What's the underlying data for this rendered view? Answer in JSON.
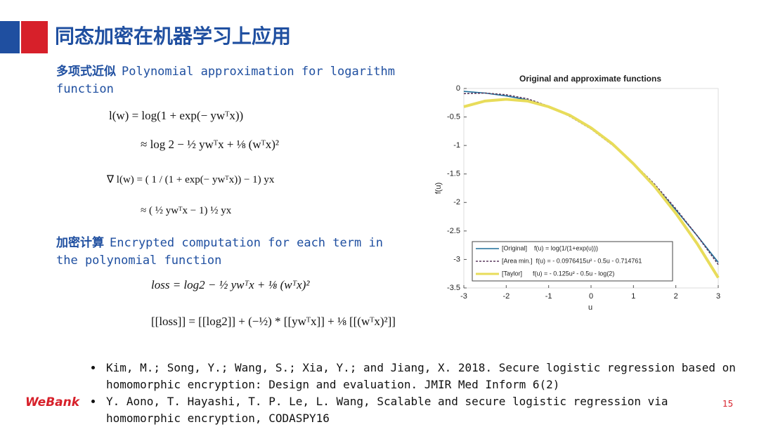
{
  "header": {
    "title": "同态加密在机器学习上应用"
  },
  "sections": [
    {
      "heading": "多项式近似",
      "text": "Polynomial approximation for logarithm function",
      "formulas": [
        "l(w) = log(1 + exp(− ywᵀx))",
        "≈ log 2 − ½ ywᵀx + ⅛ (wᵀx)²",
        "∇ l(w) = ( 1 / (1 + exp(− ywᵀx)) − 1) yx",
        "≈ ( ½ ywᵀx − 1) ½ yx"
      ]
    },
    {
      "heading": "加密计算",
      "text": "Encrypted computation for each term in the polynomial function",
      "formulas": [
        "loss = log2 − ½ ywᵀx + ⅛ (wᵀx)²",
        "[[loss]] = [[log2]] + (−½) * [[ywᵀx]] + ⅛ [[(wᵀx)²]]"
      ]
    }
  ],
  "chart_data": {
    "type": "line",
    "title": "Original and approximate functions",
    "x_label": "u",
    "y_label": "f(u)",
    "x": [
      -3,
      -2.5,
      -2,
      -1.5,
      -1,
      -0.5,
      0,
      0.5,
      1,
      1.5,
      2,
      2.5,
      3
    ],
    "series": [
      {
        "name": "[Original]    f(u) = log(1/(1+exp(u)))",
        "color": "#1f6f9a",
        "dashed": false,
        "values": [
          -0.05,
          -0.08,
          -0.13,
          -0.2,
          -0.31,
          -0.47,
          -0.69,
          -0.97,
          -1.31,
          -1.7,
          -2.13,
          -2.58,
          -3.05
        ]
      },
      {
        "name": "[Area min.]  f(u) = - 0.0976415u² - 0.5u - 0.714761",
        "color": "#5a3a5e",
        "dashed": true,
        "values": [
          -0.09,
          -0.08,
          -0.11,
          -0.18,
          -0.31,
          -0.49,
          -0.71,
          -0.99,
          -1.31,
          -1.68,
          -2.11,
          -2.58,
          -3.09
        ]
      },
      {
        "name": "[Taylor]      f(u) = - 0.125u² - 0.5u - log(2)",
        "color": "#e8dc5a",
        "dashed": false,
        "values": [
          -0.32,
          -0.22,
          -0.19,
          -0.22,
          -0.32,
          -0.47,
          -0.69,
          -0.97,
          -1.32,
          -1.72,
          -2.19,
          -2.72,
          -3.32
        ]
      }
    ],
    "xlim": [
      -3,
      3
    ],
    "ylim": [
      -3.5,
      0
    ],
    "xticks": [
      -3,
      -2,
      -1,
      0,
      1,
      2,
      3
    ],
    "yticks": [
      -3.5,
      -3,
      -2.5,
      -2,
      -1.5,
      -1,
      -0.5,
      0
    ],
    "legend": "lower left"
  },
  "references": [
    "Kim, M.; Song, Y.; Wang, S.; Xia, Y.; and Jiang, X. 2018. Secure logistic regression based on homomorphic encryption: Design and evaluation. JMIR Med Inform 6(2)",
    "Y. Aono, T. Hayashi, T. P. Le, L. Wang, Scalable and secure logistic regression via homomorphic encryption, CODASPY16"
  ],
  "footer": {
    "logo": "WeBank",
    "page": "15"
  }
}
